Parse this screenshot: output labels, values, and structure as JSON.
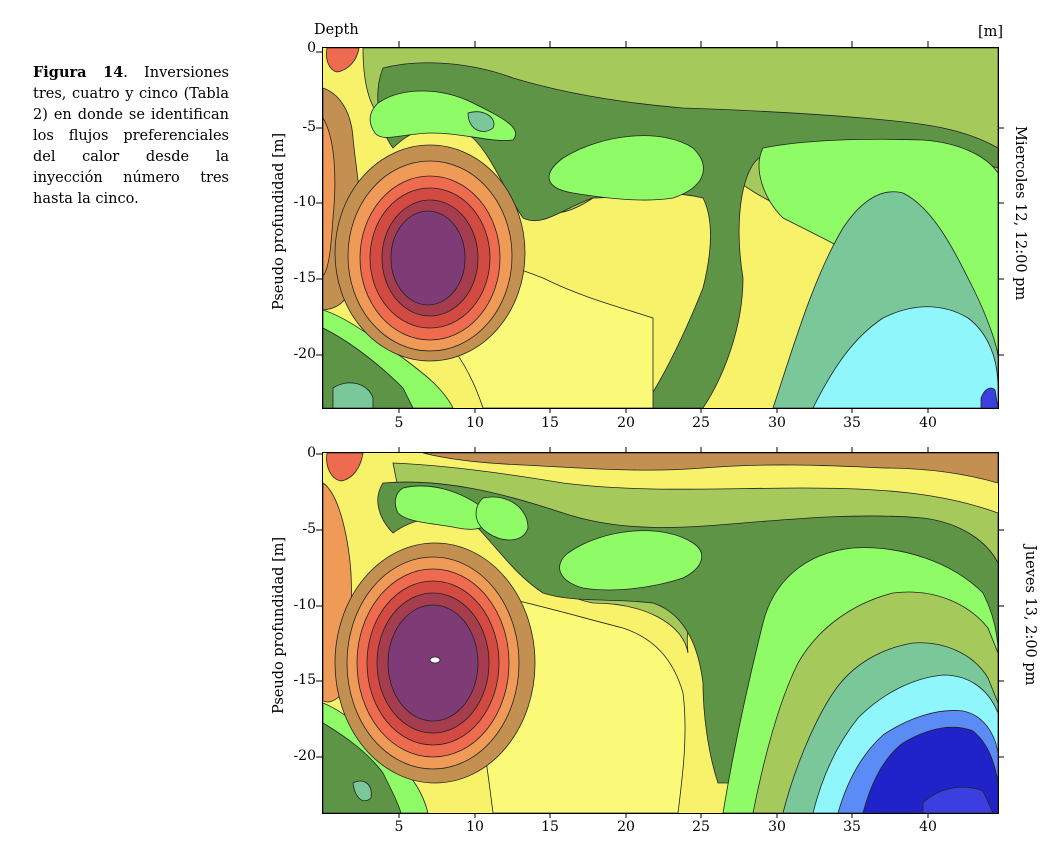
{
  "caption": {
    "label": "Figura 14",
    "text": ". Inversiones tres, cuatro y cinco (Tabla 2) en donde se identifican los flujos preferenciales del calor desde la inyección número tres hasta la cinco."
  },
  "header": {
    "depth_label": "Depth",
    "unit_label": "[m]"
  },
  "palette": {
    "deep_blue": "#1f23c9",
    "blue": "#3b3fe0",
    "mid_blue": "#5b8cf5",
    "cyan": "#8ff6fb",
    "teal": "#7ac79a",
    "light_green": "#8ffb66",
    "dark_green": "#5e9446",
    "olive": "#a6c95c",
    "yellow": "#fbfa78",
    "tan": "#c49052",
    "orange": "#ef9a56",
    "salmon": "#ef6b50",
    "red": "#d34a42",
    "dark_red": "#a63d4e",
    "purple": "#7e3b76"
  },
  "plots": [
    {
      "ylabel": "Pseudo profundidad [m]",
      "side_label": "Miercoles 12, 12:00 pm",
      "yticks": [
        "0",
        "-5",
        "-10",
        "-15",
        "-20"
      ],
      "xticks": [
        "5",
        "10",
        "15",
        "20",
        "25",
        "30",
        "35",
        "40"
      ]
    },
    {
      "ylabel": "Pseudo profundidad [m]",
      "side_label": "Jueves 13, 2:00 pm",
      "yticks": [
        "0",
        "-5",
        "-10",
        "-15",
        "-20"
      ],
      "xticks": [
        "5",
        "10",
        "15",
        "20",
        "25",
        "30",
        "35",
        "40"
      ]
    }
  ]
}
